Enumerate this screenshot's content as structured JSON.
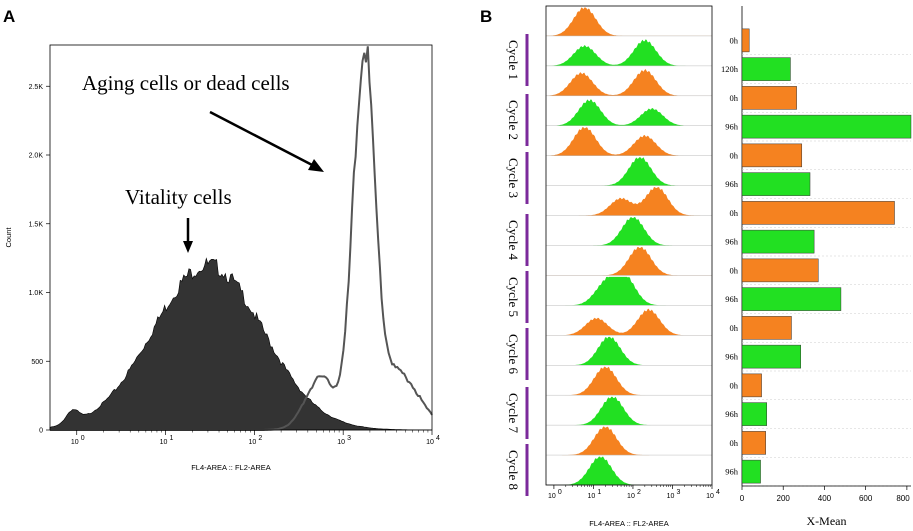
{
  "chart_data": [
    {
      "type": "histogram",
      "panel": "A",
      "xlabel": "FL4-AREA :: FL2-AREA",
      "ylabel": "Count",
      "xscale": "log",
      "xlim": [
        0.5,
        10000
      ],
      "ylim": [
        0,
        2800
      ],
      "xticks": [
        "10^0",
        "10^1",
        "10^2",
        "10^3",
        "10^4"
      ],
      "xticks_sup": [
        "0",
        "1",
        "2",
        "3",
        "4"
      ],
      "yticks": [
        0,
        500,
        1000,
        1500,
        2000,
        2500
      ],
      "ytick_labels": [
        "0",
        "500",
        "1.0K",
        "1.5K",
        "2.0K",
        "2.5K"
      ],
      "series": [
        {
          "name": "Vitality cells",
          "style": "filled",
          "color": "#333333",
          "mode": 30,
          "log_sigma": 0.62,
          "peak": 1200
        },
        {
          "name": "Aging cells or dead cells",
          "style": "outline",
          "color": "#555555",
          "mode": 1700,
          "log_sigma": 0.12,
          "peak": 2690
        }
      ],
      "annotations": [
        {
          "text": "Aging cells or dead cells"
        },
        {
          "text": "Vitality cells"
        }
      ]
    },
    {
      "type": "histogram_stack",
      "panel": "B",
      "xlabel": "FL4-AREA :: FL2-AREA",
      "xscale": "log",
      "xticks_sup": [
        "0",
        "1",
        "2",
        "3",
        "4"
      ],
      "cycles": [
        "Cycle 1",
        "Cycle 2",
        "Cycle 3",
        "Cycle 4",
        "Cycle 5",
        "Cycle 6",
        "Cycle 7",
        "Cycle 8"
      ],
      "rows": [
        {
          "time": "0h",
          "color": "orange",
          "modes": [
            6
          ],
          "weights": [
            1
          ]
        },
        {
          "time": "120h",
          "color": "green",
          "modes": [
            6,
            200
          ],
          "weights": [
            0.7,
            0.9
          ]
        },
        {
          "time": "0h",
          "color": "orange",
          "modes": [
            5,
            200
          ],
          "weights": [
            0.8,
            0.9
          ]
        },
        {
          "time": "96h",
          "color": "green",
          "modes": [
            8,
            300
          ],
          "weights": [
            0.9,
            0.6
          ]
        },
        {
          "time": "0h",
          "color": "orange",
          "modes": [
            6,
            200
          ],
          "weights": [
            1,
            0.7
          ]
        },
        {
          "time": "96h",
          "color": "green",
          "modes": [
            150
          ],
          "weights": [
            1
          ]
        },
        {
          "time": "0h",
          "color": "orange",
          "modes": [
            50,
            400
          ],
          "weights": [
            0.6,
            1
          ]
        },
        {
          "time": "96h",
          "color": "green",
          "modes": [
            100
          ],
          "weights": [
            1
          ]
        },
        {
          "time": "0h",
          "color": "orange",
          "modes": [
            150
          ],
          "weights": [
            1
          ]
        },
        {
          "time": "96h",
          "color": "green",
          "modes": [
            20,
            60
          ],
          "weights": [
            0.7,
            1
          ]
        },
        {
          "time": "0h",
          "color": "orange",
          "modes": [
            12,
            250
          ],
          "weights": [
            0.6,
            0.9
          ]
        },
        {
          "time": "96h",
          "color": "green",
          "modes": [
            25
          ],
          "weights": [
            1
          ]
        },
        {
          "time": "0h",
          "color": "orange",
          "modes": [
            20
          ],
          "weights": [
            1
          ]
        },
        {
          "time": "96h",
          "color": "green",
          "modes": [
            30
          ],
          "weights": [
            1
          ]
        },
        {
          "time": "0h",
          "color": "orange",
          "modes": [
            20
          ],
          "weights": [
            1
          ]
        },
        {
          "time": "96h",
          "color": "green",
          "modes": [
            15
          ],
          "weights": [
            1
          ]
        }
      ]
    },
    {
      "type": "bar",
      "orientation": "horizontal",
      "panel": "B",
      "xlabel": "X-Mean",
      "xlim": [
        0,
        820
      ],
      "xticks": [
        0,
        200,
        400,
        600,
        800
      ],
      "categories": [
        "0h",
        "120h",
        "0h",
        "96h",
        "0h",
        "96h",
        "0h",
        "96h",
        "0h",
        "96h",
        "0h",
        "96h",
        "0h",
        "96h",
        "0h",
        "96h"
      ],
      "values": [
        35,
        235,
        265,
        820,
        290,
        330,
        740,
        350,
        370,
        480,
        240,
        285,
        95,
        120,
        115,
        90
      ],
      "colors": [
        "orange",
        "green",
        "orange",
        "green",
        "orange",
        "green",
        "orange",
        "green",
        "orange",
        "green",
        "orange",
        "green",
        "orange",
        "green",
        "orange",
        "green"
      ]
    }
  ],
  "colors": {
    "orange": "#F58220",
    "green": "#22E022",
    "dark": "#333333",
    "outline": "#555555",
    "purple": "#7B2A9B"
  },
  "labels": {
    "panel_a": "A",
    "panel_b": "B"
  }
}
